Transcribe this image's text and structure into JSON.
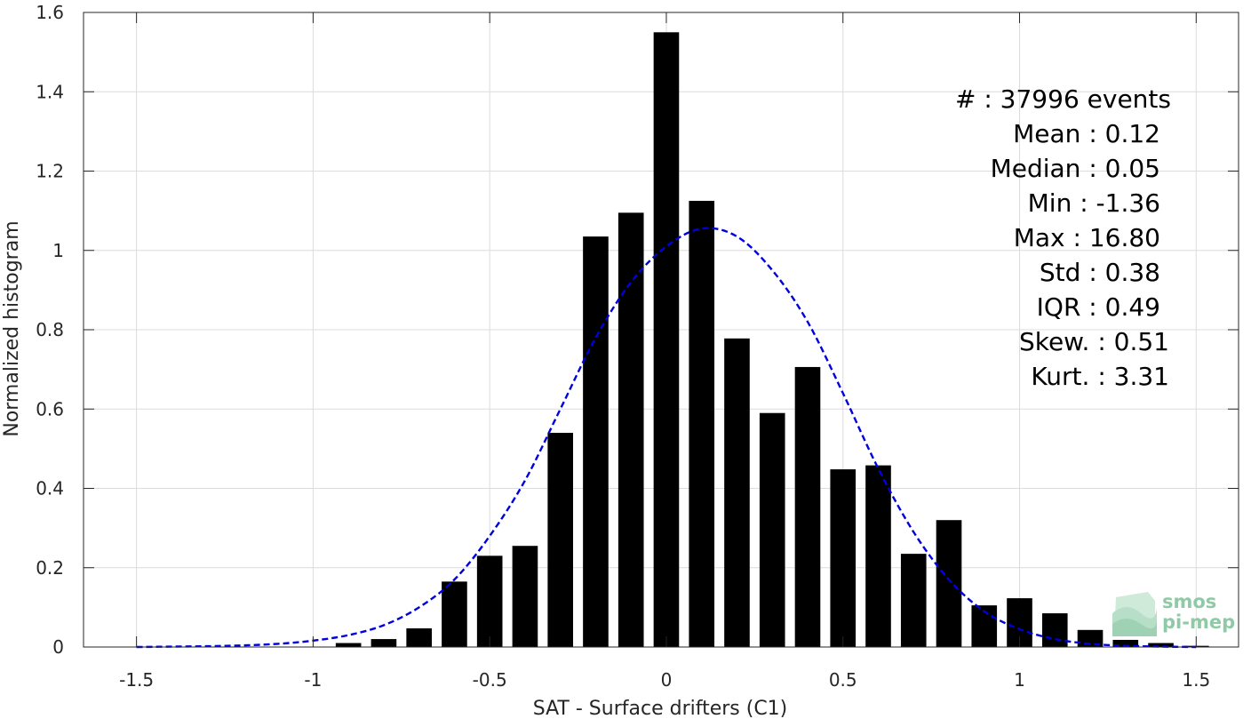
{
  "chart_data": {
    "type": "bar",
    "xlabel": "SAT - Surface drifters (C1)",
    "ylabel": "Normalized histogram",
    "xlim": [
      -1.65,
      1.62
    ],
    "ylim": [
      0,
      1.6
    ],
    "xticks": [
      "-1.5",
      "-1",
      "-0.5",
      "0",
      "0.5",
      "1",
      "1.5"
    ],
    "xtick_values": [
      -1.5,
      -1,
      -0.5,
      0,
      0.5,
      1,
      1.5
    ],
    "yticks": [
      "0",
      "0.2",
      "0.4",
      "0.6",
      "0.8",
      "1",
      "1.2",
      "1.4",
      "1.6"
    ],
    "ytick_values": [
      0,
      0.2,
      0.4,
      0.6,
      0.8,
      1,
      1.2,
      1.4,
      1.6
    ],
    "grid": true,
    "bar_width": 0.072,
    "bar_color": "#000000",
    "bars": {
      "x": [
        -0.9,
        -0.8,
        -0.7,
        -0.6,
        -0.5,
        -0.4,
        -0.3,
        -0.2,
        -0.1,
        0.0,
        0.1,
        0.2,
        0.3,
        0.4,
        0.5,
        0.6,
        0.7,
        0.8,
        0.9,
        1.0,
        1.1,
        1.2,
        1.3,
        1.4,
        1.5
      ],
      "values": [
        0.01,
        0.02,
        0.047,
        0.165,
        0.23,
        0.255,
        0.54,
        1.035,
        1.095,
        1.55,
        1.125,
        0.778,
        0.59,
        0.706,
        0.448,
        0.458,
        0.235,
        0.32,
        0.105,
        0.123,
        0.085,
        0.043,
        0.018,
        0.01,
        0.003
      ]
    },
    "fit_curve": {
      "style": "dashed",
      "color": "#0000dd",
      "x": [
        -1.5,
        -1.4,
        -1.3,
        -1.2,
        -1.1,
        -1.0,
        -0.9,
        -0.8,
        -0.7,
        -0.6,
        -0.5,
        -0.4,
        -0.3,
        -0.2,
        -0.1,
        0.0,
        0.1,
        0.2,
        0.3,
        0.4,
        0.5,
        0.6,
        0.7,
        0.8,
        0.9,
        1.0,
        1.1,
        1.2,
        1.3,
        1.4,
        1.5
      ],
      "y": [
        0.0,
        0.001,
        0.002,
        0.004,
        0.008,
        0.016,
        0.03,
        0.055,
        0.1,
        0.17,
        0.28,
        0.42,
        0.6,
        0.78,
        0.92,
        1.01,
        1.055,
        1.035,
        0.95,
        0.82,
        0.64,
        0.45,
        0.29,
        0.17,
        0.09,
        0.045,
        0.02,
        0.008,
        0.003,
        0.001,
        0.0
      ]
    },
    "stats": [
      "#  : 37996 events",
      "Mean : 0.12",
      "Median : 0.05",
      "Min : -1.36",
      "Max : 16.80",
      "Std : 0.38",
      "IQR : 0.49",
      "Skew. : 0.51",
      "Kurt. : 3.31"
    ]
  },
  "logo": {
    "line1": "smos",
    "line2": "pi-mep"
  }
}
